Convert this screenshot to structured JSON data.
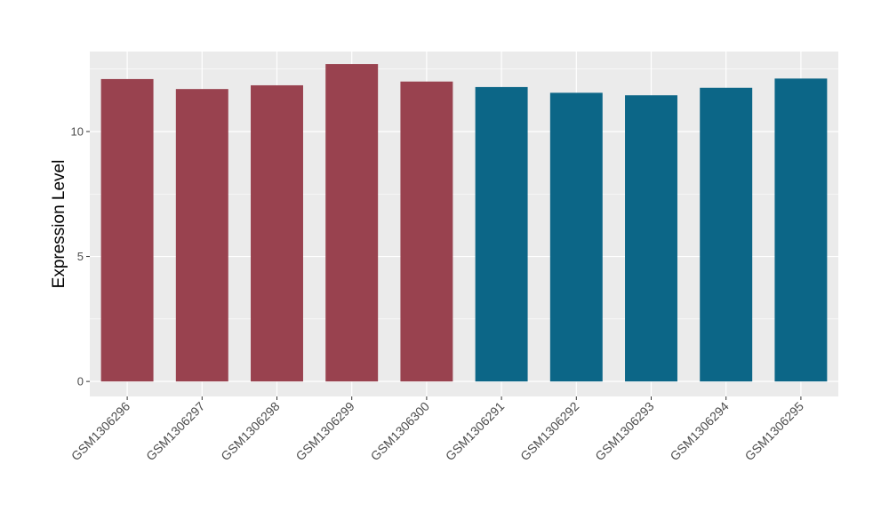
{
  "chart_data": {
    "type": "bar",
    "ylabel": "Expression Level",
    "xlabel": "",
    "ylim": [
      -0.6,
      13.2
    ],
    "yticks": [
      0,
      5,
      10
    ],
    "grid": true,
    "legend": "none",
    "categories": [
      "GSM1306296",
      "GSM1306297",
      "GSM1306298",
      "GSM1306299",
      "GSM1306300",
      "GSM1306291",
      "GSM1306292",
      "GSM1306293",
      "GSM1306294",
      "GSM1306295"
    ],
    "values": [
      12.1,
      11.7,
      11.85,
      12.7,
      12.0,
      11.78,
      11.55,
      11.45,
      11.75,
      12.12
    ],
    "groups": [
      "a",
      "a",
      "a",
      "a",
      "a",
      "b",
      "b",
      "b",
      "b",
      "b"
    ],
    "group_colors": {
      "a": "#99424f",
      "b": "#0c6687"
    },
    "panel_color": "#ebebeb",
    "grid_color": "#ffffff"
  }
}
